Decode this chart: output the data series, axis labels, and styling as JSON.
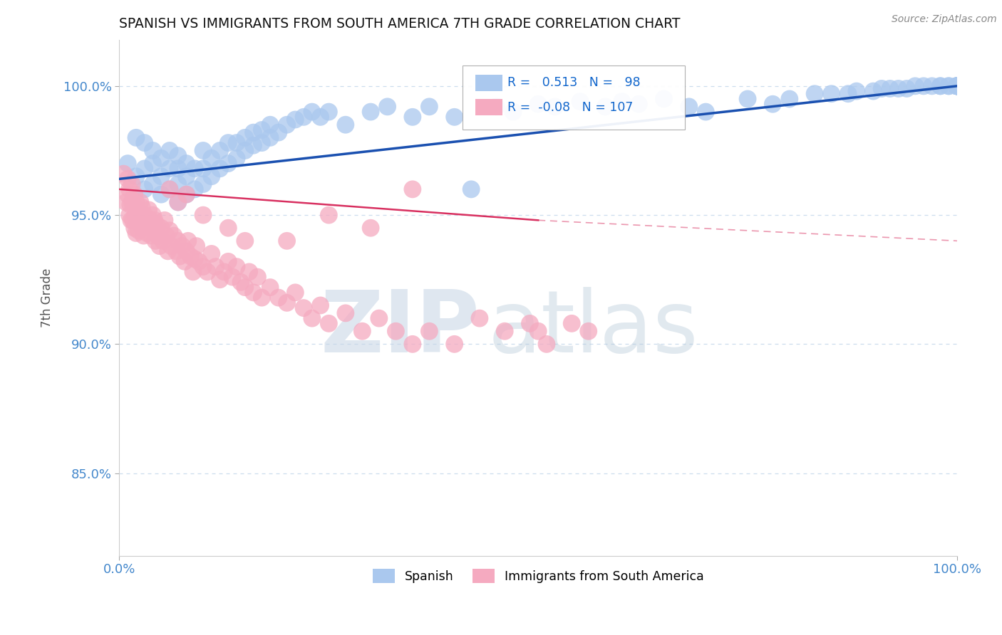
{
  "title": "SPANISH VS IMMIGRANTS FROM SOUTH AMERICA 7TH GRADE CORRELATION CHART",
  "source": "Source: ZipAtlas.com",
  "ylabel": "7th Grade",
  "yticks": [
    0.85,
    0.9,
    0.95,
    1.0
  ],
  "ytick_labels": [
    "85.0%",
    "90.0%",
    "95.0%",
    "100.0%"
  ],
  "xlim": [
    0.0,
    1.0
  ],
  "ylim": [
    0.818,
    1.018
  ],
  "blue_R": 0.513,
  "blue_N": 98,
  "pink_R": -0.08,
  "pink_N": 107,
  "blue_color": "#aac8ee",
  "pink_color": "#f5aac0",
  "blue_line_color": "#1a50b0",
  "pink_line_color": "#d83060",
  "grid_color": "#ccddee",
  "title_color": "#111111",
  "axis_label_color": "#4488cc",
  "legend_R_color": "#1166cc",
  "background_color": "#ffffff",
  "blue_trend": [
    0.0,
    1.0,
    0.964,
    1.0
  ],
  "pink_trend_solid": [
    0.0,
    0.5,
    0.96,
    0.948
  ],
  "pink_trend_dashed": [
    0.5,
    1.0,
    0.948,
    0.94
  ],
  "blue_x": [
    0.01,
    0.02,
    0.02,
    0.03,
    0.03,
    0.03,
    0.04,
    0.04,
    0.04,
    0.05,
    0.05,
    0.05,
    0.06,
    0.06,
    0.06,
    0.07,
    0.07,
    0.07,
    0.07,
    0.08,
    0.08,
    0.08,
    0.09,
    0.09,
    0.1,
    0.1,
    0.1,
    0.11,
    0.11,
    0.12,
    0.12,
    0.13,
    0.13,
    0.14,
    0.14,
    0.15,
    0.15,
    0.16,
    0.16,
    0.17,
    0.17,
    0.18,
    0.18,
    0.19,
    0.2,
    0.21,
    0.22,
    0.23,
    0.24,
    0.25,
    0.27,
    0.3,
    0.32,
    0.35,
    0.37,
    0.4,
    0.42,
    0.45,
    0.47,
    0.5,
    0.52,
    0.55,
    0.58,
    0.6,
    0.62,
    0.65,
    0.68,
    0.7,
    0.75,
    0.78,
    0.8,
    0.83,
    0.85,
    0.87,
    0.88,
    0.9,
    0.91,
    0.92,
    0.93,
    0.94,
    0.95,
    0.96,
    0.97,
    0.98,
    0.98,
    0.99,
    0.99,
    1.0,
    1.0,
    1.0,
    1.0,
    1.0,
    1.0,
    1.0,
    1.0,
    1.0,
    1.0,
    1.0
  ],
  "blue_y": [
    0.97,
    0.965,
    0.98,
    0.96,
    0.968,
    0.978,
    0.962,
    0.97,
    0.975,
    0.958,
    0.965,
    0.972,
    0.96,
    0.968,
    0.975,
    0.955,
    0.962,
    0.968,
    0.973,
    0.958,
    0.965,
    0.97,
    0.96,
    0.968,
    0.962,
    0.968,
    0.975,
    0.965,
    0.972,
    0.968,
    0.975,
    0.97,
    0.978,
    0.972,
    0.978,
    0.975,
    0.98,
    0.977,
    0.982,
    0.978,
    0.983,
    0.98,
    0.985,
    0.982,
    0.985,
    0.987,
    0.988,
    0.99,
    0.988,
    0.99,
    0.985,
    0.99,
    0.992,
    0.988,
    0.992,
    0.988,
    0.96,
    0.992,
    0.99,
    0.993,
    0.992,
    0.994,
    0.992,
    0.994,
    0.993,
    0.995,
    0.992,
    0.99,
    0.995,
    0.993,
    0.995,
    0.997,
    0.997,
    0.997,
    0.998,
    0.998,
    0.999,
    0.999,
    0.999,
    0.999,
    1.0,
    1.0,
    1.0,
    1.0,
    1.0,
    1.0,
    1.0,
    1.0,
    1.0,
    1.0,
    1.0,
    1.0,
    1.0,
    1.0,
    1.0,
    1.0,
    1.0,
    1.0
  ],
  "pink_x": [
    0.005,
    0.008,
    0.01,
    0.01,
    0.012,
    0.012,
    0.013,
    0.014,
    0.015,
    0.015,
    0.016,
    0.017,
    0.018,
    0.018,
    0.019,
    0.02,
    0.02,
    0.021,
    0.022,
    0.023,
    0.024,
    0.025,
    0.026,
    0.027,
    0.028,
    0.029,
    0.03,
    0.032,
    0.033,
    0.035,
    0.036,
    0.037,
    0.038,
    0.04,
    0.041,
    0.042,
    0.043,
    0.045,
    0.046,
    0.048,
    0.05,
    0.052,
    0.054,
    0.056,
    0.058,
    0.06,
    0.062,
    0.065,
    0.068,
    0.07,
    0.072,
    0.075,
    0.078,
    0.08,
    0.082,
    0.085,
    0.088,
    0.09,
    0.092,
    0.095,
    0.1,
    0.105,
    0.11,
    0.115,
    0.12,
    0.125,
    0.13,
    0.135,
    0.14,
    0.145,
    0.15,
    0.155,
    0.16,
    0.165,
    0.17,
    0.18,
    0.19,
    0.2,
    0.21,
    0.22,
    0.23,
    0.24,
    0.25,
    0.27,
    0.29,
    0.31,
    0.33,
    0.35,
    0.37,
    0.4,
    0.43,
    0.46,
    0.49,
    0.5,
    0.51,
    0.54,
    0.56,
    0.35,
    0.2,
    0.25,
    0.3,
    0.15,
    0.08,
    0.06,
    0.07,
    0.1,
    0.13
  ],
  "pink_y": [
    0.966,
    0.955,
    0.958,
    0.964,
    0.95,
    0.96,
    0.954,
    0.948,
    0.955,
    0.962,
    0.948,
    0.954,
    0.945,
    0.958,
    0.95,
    0.943,
    0.955,
    0.948,
    0.952,
    0.944,
    0.95,
    0.955,
    0.946,
    0.953,
    0.948,
    0.942,
    0.95,
    0.946,
    0.943,
    0.952,
    0.946,
    0.948,
    0.942,
    0.95,
    0.944,
    0.948,
    0.94,
    0.946,
    0.942,
    0.938,
    0.945,
    0.94,
    0.948,
    0.942,
    0.936,
    0.944,
    0.938,
    0.942,
    0.936,
    0.94,
    0.934,
    0.938,
    0.932,
    0.936,
    0.94,
    0.934,
    0.928,
    0.933,
    0.938,
    0.932,
    0.93,
    0.928,
    0.935,
    0.93,
    0.925,
    0.928,
    0.932,
    0.926,
    0.93,
    0.924,
    0.922,
    0.928,
    0.92,
    0.926,
    0.918,
    0.922,
    0.918,
    0.916,
    0.92,
    0.914,
    0.91,
    0.915,
    0.908,
    0.912,
    0.905,
    0.91,
    0.905,
    0.9,
    0.905,
    0.9,
    0.91,
    0.905,
    0.908,
    0.905,
    0.9,
    0.908,
    0.905,
    0.96,
    0.94,
    0.95,
    0.945,
    0.94,
    0.958,
    0.96,
    0.955,
    0.95,
    0.945
  ]
}
